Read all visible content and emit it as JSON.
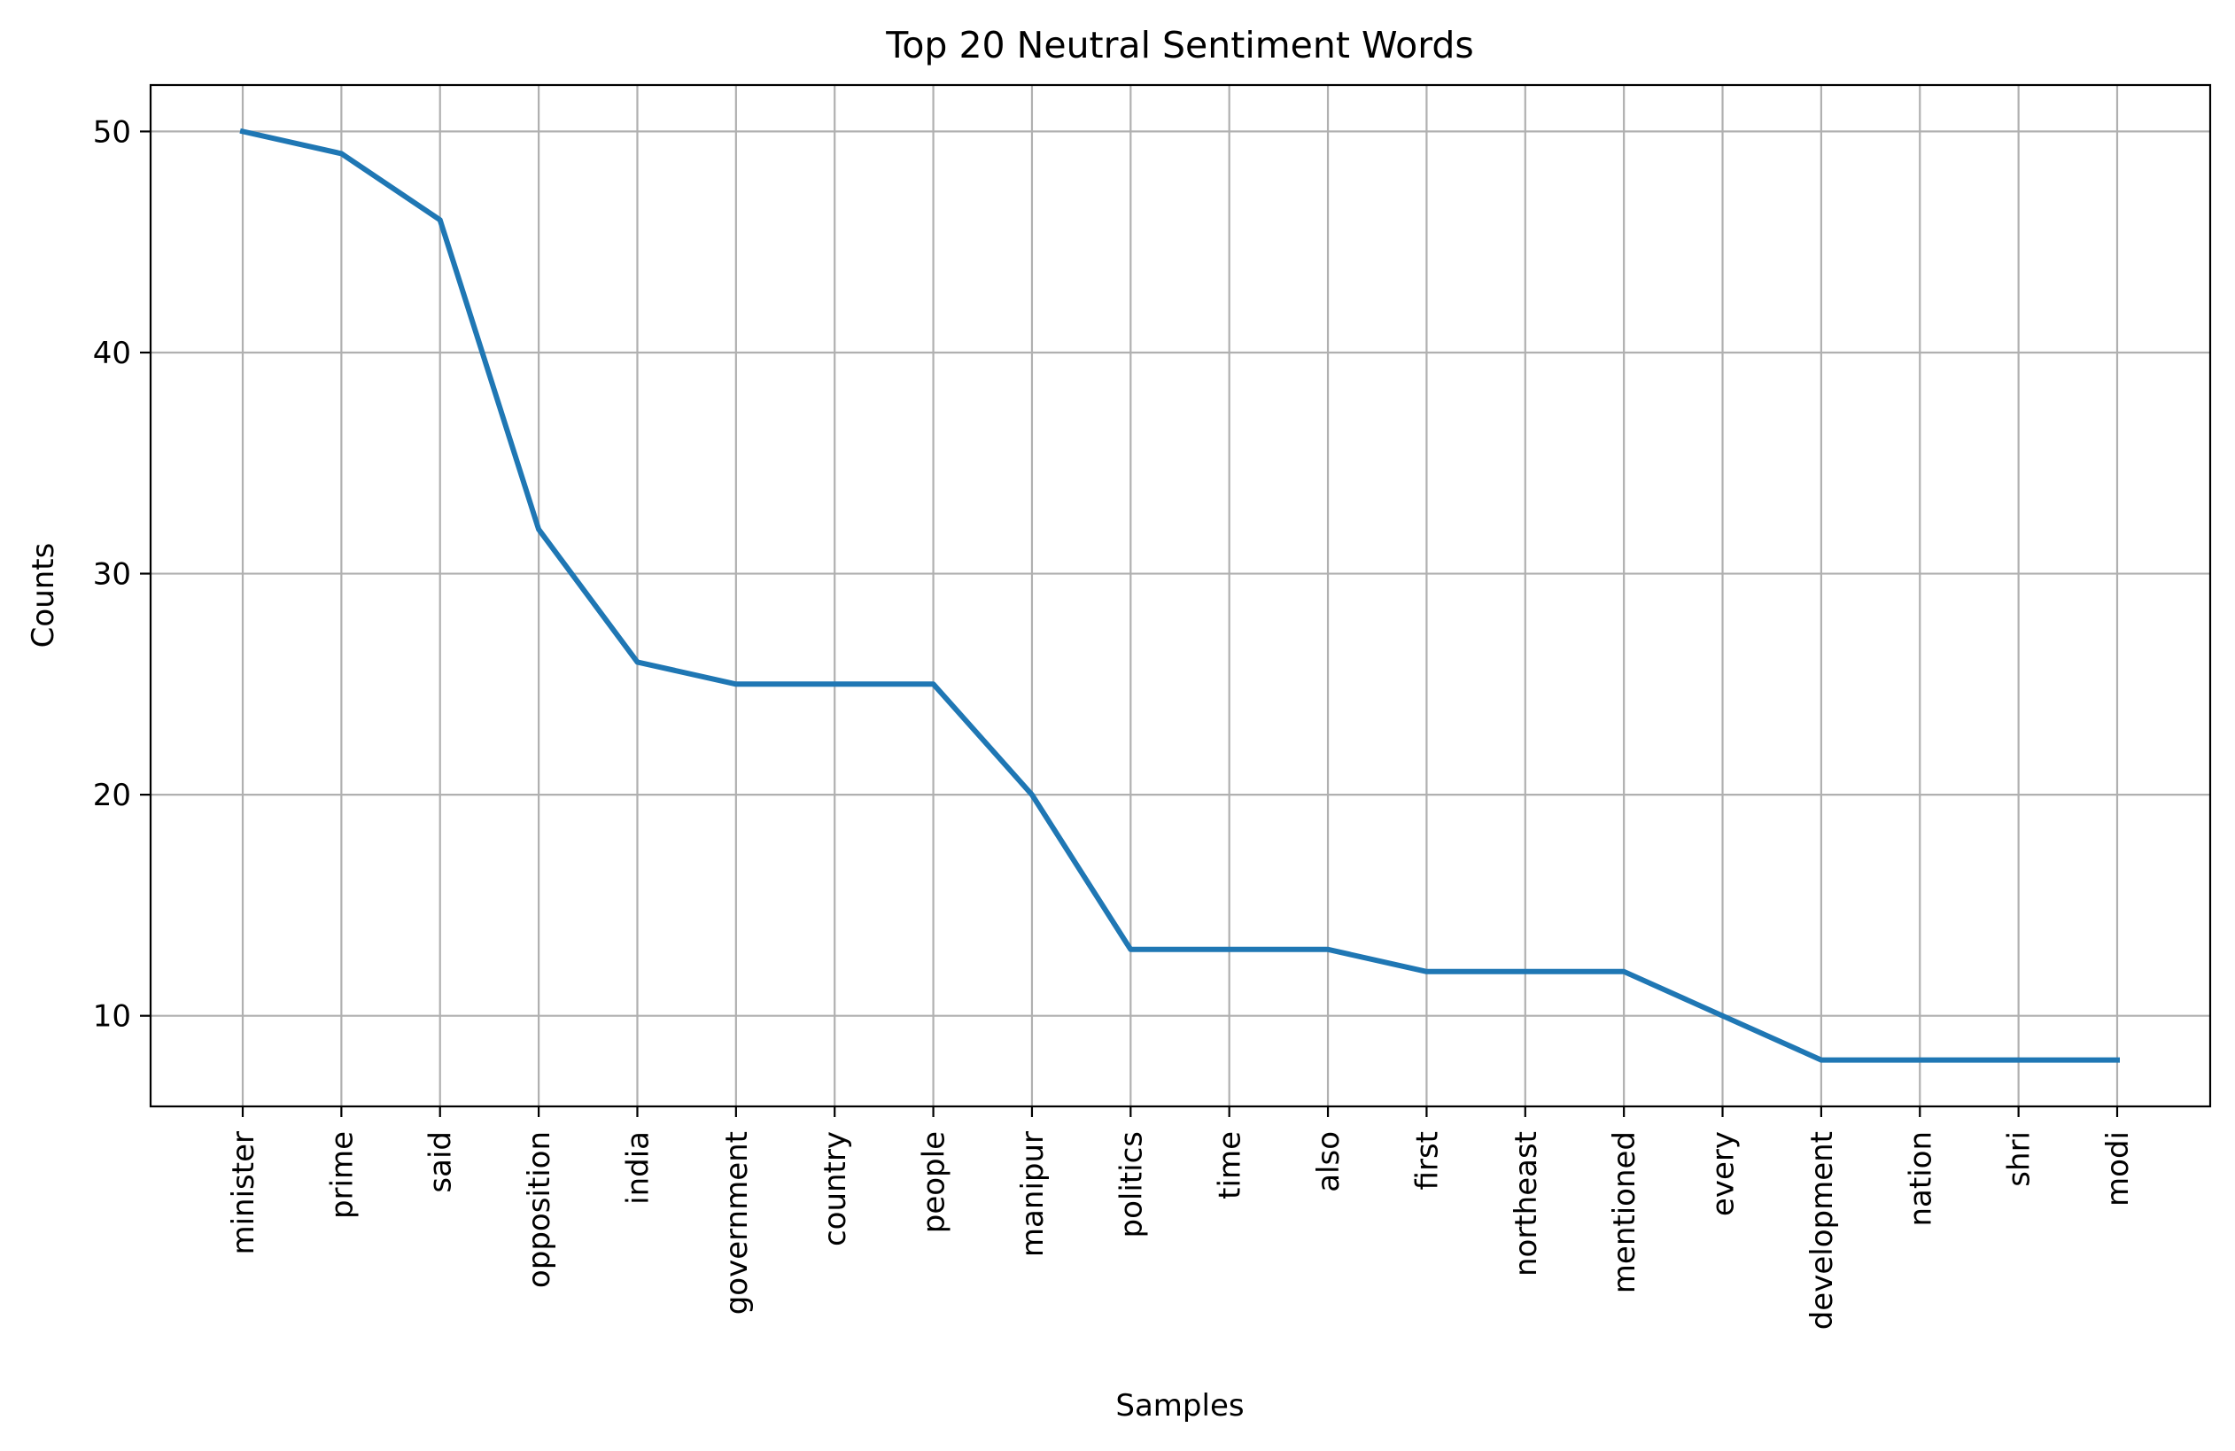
{
  "chart_data": {
    "type": "line",
    "title": "Top 20 Neutral Sentiment Words",
    "xlabel": "Samples",
    "ylabel": "Counts",
    "categories": [
      "minister",
      "prime",
      "said",
      "opposition",
      "india",
      "government",
      "country",
      "people",
      "manipur",
      "politics",
      "time",
      "also",
      "first",
      "northeast",
      "mentioned",
      "every",
      "development",
      "nation",
      "shri",
      "modi"
    ],
    "values": [
      50,
      49,
      46,
      32,
      26,
      25,
      25,
      25,
      20,
      13,
      13,
      13,
      12,
      12,
      12,
      10,
      8,
      8,
      8,
      8
    ],
    "ylim": [
      5.9,
      52.1
    ],
    "yticks": [
      10,
      20,
      30,
      40,
      50
    ],
    "grid": true,
    "legend": "none",
    "line_color": "#1f77b4"
  }
}
